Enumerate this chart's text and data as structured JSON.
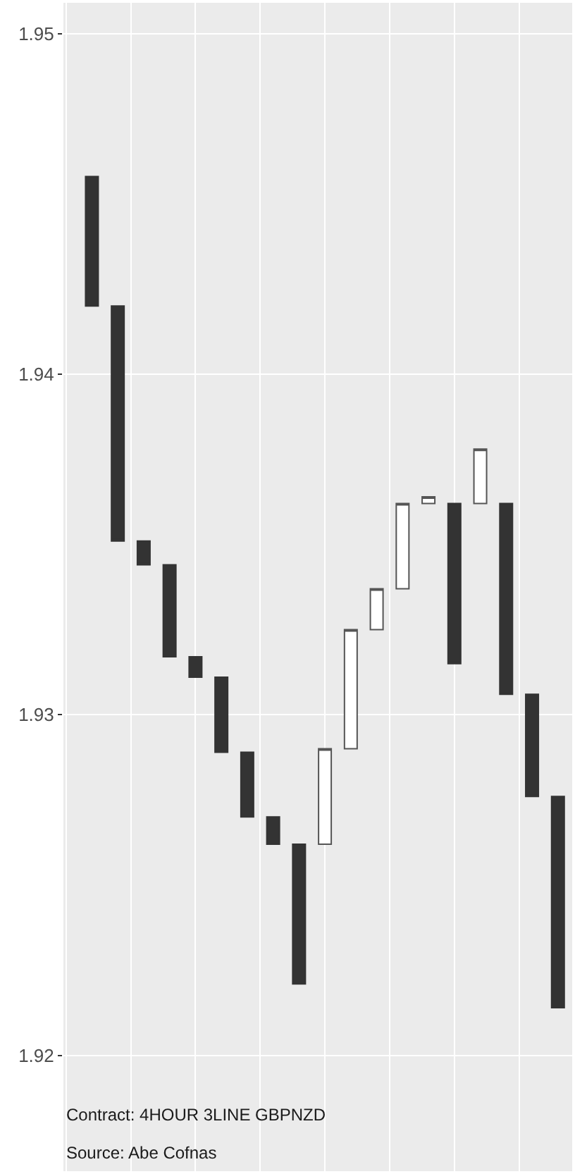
{
  "chart_data": {
    "type": "candlestick",
    "categories": [
      null,
      null,
      null,
      null,
      null,
      null,
      null,
      null,
      null,
      null,
      null,
      null,
      null,
      null,
      null,
      null,
      null,
      null,
      null
    ],
    "ohlc": [
      [
        1.9458,
        1.9458,
        1.942,
        1.942
      ],
      [
        1.942,
        1.942,
        1.9351,
        1.9351
      ],
      [
        1.9351,
        1.9351,
        1.9344,
        1.9344
      ],
      [
        1.9344,
        1.9344,
        1.9317,
        1.9317
      ],
      [
        1.9317,
        1.9317,
        1.9311,
        1.9311
      ],
      [
        1.9311,
        1.9311,
        1.9289,
        1.9289
      ],
      [
        1.9289,
        1.9289,
        1.927,
        1.927
      ],
      [
        1.927,
        1.927,
        1.9262,
        1.9262
      ],
      [
        1.9262,
        1.9262,
        1.9221,
        1.9221
      ],
      [
        1.9262,
        1.929,
        1.9262,
        1.929
      ],
      [
        1.929,
        1.9325,
        1.929,
        1.9325
      ],
      [
        1.9325,
        1.9337,
        1.9325,
        1.9337
      ],
      [
        1.9337,
        1.9362,
        1.9337,
        1.9362
      ],
      [
        1.9362,
        1.9364,
        1.9362,
        1.9364
      ],
      [
        1.9362,
        1.9362,
        1.9315,
        1.9315
      ],
      [
        1.9362,
        1.9378,
        1.9362,
        1.9378
      ],
      [
        1.9362,
        1.9362,
        1.9306,
        1.9306
      ],
      [
        1.9306,
        1.9306,
        1.9276,
        1.9276
      ],
      [
        1.9276,
        1.9276,
        1.9214,
        1.9214
      ]
    ],
    "colors": [
      "#333333",
      "#333333",
      "#333333",
      "#333333",
      "#333333",
      "#333333",
      "#333333",
      "#333333",
      "#333333",
      "#ffffff",
      "#ffffff",
      "#ffffff",
      "#ffffff",
      "#ffffff",
      "#333333",
      "#ffffff",
      "#333333",
      "#333333",
      "#333333"
    ],
    "ylim": [
      1.9166,
      1.9509
    ],
    "yticks": [
      1.92,
      1.93,
      1.94,
      1.95
    ],
    "tick_labels": "y",
    "grid": true,
    "annotations": [
      "Contract: 4HOUR 3LINE GBPNZD",
      "Source: Abe Cofnas"
    ]
  }
}
